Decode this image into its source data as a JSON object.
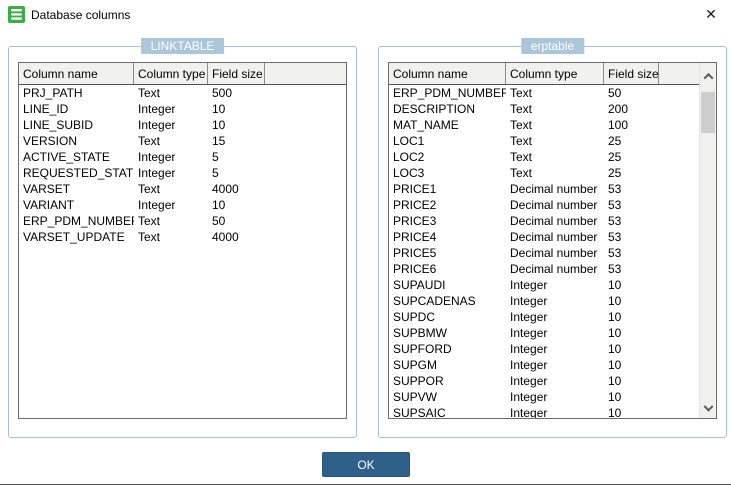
{
  "window": {
    "title": "Database columns",
    "close_glyph": "✕"
  },
  "icons": {
    "app": "database-icon (green stacked disks)",
    "close": "✕",
    "scroll_up": "chevron-up",
    "scroll_down": "chevron-down"
  },
  "colors": {
    "group_label_bg": "#aac6d8",
    "group_border": "#a3bfd2",
    "ok_button_bg": "#2f608a",
    "header_bg": "#f1f1ef",
    "scroll_track": "#f0f0ee",
    "scroll_thumb": "#cdcdcd",
    "icon_green": "#3faa49"
  },
  "panels": [
    {
      "label": "LINKTABLE",
      "headers": [
        "Column name",
        "Column type",
        "Field size",
        ""
      ],
      "rows": [
        [
          "PRJ_PATH",
          "Text",
          "500"
        ],
        [
          "LINE_ID",
          "Integer",
          "10"
        ],
        [
          "LINE_SUBID",
          "Integer",
          "10"
        ],
        [
          "VERSION",
          "Text",
          "15"
        ],
        [
          "ACTIVE_STATE",
          "Integer",
          "5"
        ],
        [
          "REQUESTED_STATE",
          "Integer",
          "5"
        ],
        [
          "VARSET",
          "Text",
          "4000"
        ],
        [
          "VARIANT",
          "Integer",
          "10"
        ],
        [
          "ERP_PDM_NUMBER",
          "Text",
          "50"
        ],
        [
          "VARSET_UPDATE",
          "Text",
          "4000"
        ]
      ]
    },
    {
      "label": "erptable",
      "headers": [
        "Column name",
        "Column type",
        "Field size",
        ""
      ],
      "rows": [
        [
          "ERP_PDM_NUMBER",
          "Text",
          "50"
        ],
        [
          "DESCRIPTION",
          "Text",
          "200"
        ],
        [
          "MAT_NAME",
          "Text",
          "100"
        ],
        [
          "LOC1",
          "Text",
          "25"
        ],
        [
          "LOC2",
          "Text",
          "25"
        ],
        [
          "LOC3",
          "Text",
          "25"
        ],
        [
          "PRICE1",
          "Decimal number",
          "53"
        ],
        [
          "PRICE2",
          "Decimal number",
          "53"
        ],
        [
          "PRICE3",
          "Decimal number",
          "53"
        ],
        [
          "PRICE4",
          "Decimal number",
          "53"
        ],
        [
          "PRICE5",
          "Decimal number",
          "53"
        ],
        [
          "PRICE6",
          "Decimal number",
          "53"
        ],
        [
          "SUPAUDI",
          "Integer",
          "10"
        ],
        [
          "SUPCADENAS",
          "Integer",
          "10"
        ],
        [
          "SUPDC",
          "Integer",
          "10"
        ],
        [
          "SUPBMW",
          "Integer",
          "10"
        ],
        [
          "SUPFORD",
          "Integer",
          "10"
        ],
        [
          "SUPGM",
          "Integer",
          "10"
        ],
        [
          "SUPPOR",
          "Integer",
          "10"
        ],
        [
          "SUPVW",
          "Integer",
          "10"
        ],
        [
          "SUPSAIC",
          "Integer",
          "10"
        ]
      ]
    }
  ],
  "footer": {
    "ok_label": "OK"
  }
}
